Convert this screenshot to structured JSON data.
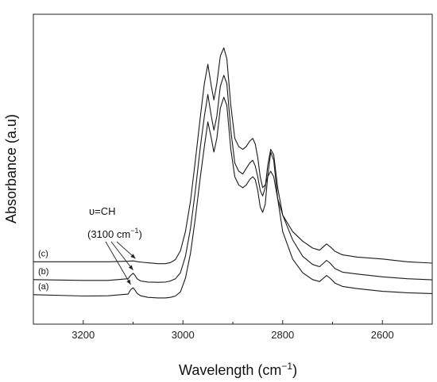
{
  "chart_data": {
    "type": "line",
    "xlabel": "Wavelength (cm",
    "xlabel_sup": "−1",
    "xlabel_close": ")",
    "ylabel": "Absorbance (a.u)",
    "xlim": [
      3300,
      2500
    ],
    "ylim": [
      0,
      1
    ],
    "x_ticks": [
      3200,
      3000,
      2800,
      2600
    ],
    "x_tick_labels": [
      "3200",
      "3000",
      "2800",
      "2600"
    ],
    "grid": false,
    "annotation": {
      "line1": "υ=CH",
      "line2_prefix": "(3100 cm",
      "line2_sup": "−1",
      "line2_suffix": ")",
      "target_x": 3100
    },
    "series": [
      {
        "name": "(a)",
        "x": [
          3300,
          3200,
          3150,
          3110,
          3105,
          3100,
          3096,
          3092,
          3085,
          3070,
          3050,
          3035,
          3025,
          3015,
          3005,
          2995,
          2985,
          2975,
          2965,
          2957,
          2950,
          2943,
          2938,
          2932,
          2925,
          2918,
          2912,
          2904,
          2896,
          2888,
          2880,
          2873,
          2866,
          2860,
          2855,
          2850,
          2845,
          2840,
          2835,
          2830,
          2824,
          2818,
          2810,
          2800,
          2780,
          2760,
          2740,
          2726,
          2718,
          2712,
          2705,
          2695,
          2680,
          2650,
          2600,
          2550,
          2500
        ],
        "y": [
          0.07,
          0.065,
          0.066,
          0.072,
          0.088,
          0.095,
          0.086,
          0.075,
          0.066,
          0.06,
          0.058,
          0.058,
          0.06,
          0.065,
          0.08,
          0.13,
          0.22,
          0.35,
          0.5,
          0.61,
          0.7,
          0.64,
          0.59,
          0.64,
          0.75,
          0.79,
          0.76,
          0.6,
          0.5,
          0.47,
          0.46,
          0.47,
          0.49,
          0.5,
          0.49,
          0.45,
          0.39,
          0.37,
          0.4,
          0.5,
          0.59,
          0.56,
          0.42,
          0.3,
          0.2,
          0.15,
          0.125,
          0.118,
          0.13,
          0.14,
          0.13,
          0.112,
          0.1,
          0.092,
          0.082,
          0.077,
          0.074
        ]
      },
      {
        "name": "(b)",
        "x": [
          3300,
          3200,
          3150,
          3110,
          3105,
          3100,
          3096,
          3092,
          3085,
          3070,
          3050,
          3035,
          3025,
          3015,
          3005,
          2995,
          2985,
          2975,
          2965,
          2957,
          2950,
          2943,
          2938,
          2932,
          2925,
          2918,
          2912,
          2904,
          2896,
          2888,
          2880,
          2873,
          2866,
          2860,
          2855,
          2850,
          2845,
          2840,
          2835,
          2830,
          2824,
          2818,
          2810,
          2800,
          2780,
          2760,
          2740,
          2726,
          2718,
          2712,
          2705,
          2695,
          2680,
          2650,
          2600,
          2550,
          2500
        ],
        "y": [
          0.125,
          0.122,
          0.122,
          0.128,
          0.14,
          0.148,
          0.14,
          0.128,
          0.12,
          0.116,
          0.115,
          0.116,
          0.12,
          0.128,
          0.15,
          0.21,
          0.31,
          0.45,
          0.61,
          0.72,
          0.8,
          0.72,
          0.67,
          0.72,
          0.83,
          0.87,
          0.84,
          0.67,
          0.55,
          0.52,
          0.51,
          0.53,
          0.55,
          0.56,
          0.54,
          0.5,
          0.45,
          0.43,
          0.46,
          0.54,
          0.6,
          0.58,
          0.46,
          0.36,
          0.27,
          0.21,
          0.18,
          0.172,
          0.185,
          0.195,
          0.185,
          0.165,
          0.152,
          0.145,
          0.135,
          0.128,
          0.124
        ]
      },
      {
        "name": "(c)",
        "x": [
          3300,
          3200,
          3150,
          3110,
          3100,
          3090,
          3080,
          3070,
          3050,
          3035,
          3025,
          3015,
          3005,
          2995,
          2985,
          2975,
          2965,
          2957,
          2950,
          2943,
          2938,
          2932,
          2925,
          2918,
          2912,
          2904,
          2896,
          2888,
          2880,
          2873,
          2866,
          2860,
          2855,
          2850,
          2845,
          2840,
          2835,
          2830,
          2824,
          2818,
          2810,
          2800,
          2780,
          2760,
          2740,
          2726,
          2718,
          2712,
          2705,
          2695,
          2680,
          2650,
          2600,
          2550,
          2500
        ],
        "y": [
          0.19,
          0.19,
          0.19,
          0.192,
          0.193,
          0.19,
          0.188,
          0.186,
          0.183,
          0.183,
          0.187,
          0.198,
          0.23,
          0.3,
          0.41,
          0.56,
          0.72,
          0.84,
          0.91,
          0.83,
          0.78,
          0.84,
          0.94,
          0.97,
          0.93,
          0.76,
          0.64,
          0.61,
          0.6,
          0.61,
          0.63,
          0.64,
          0.62,
          0.57,
          0.5,
          0.46,
          0.47,
          0.5,
          0.52,
          0.5,
          0.42,
          0.36,
          0.3,
          0.265,
          0.24,
          0.232,
          0.245,
          0.255,
          0.245,
          0.228,
          0.215,
          0.207,
          0.2,
          0.19,
          0.185
        ]
      }
    ]
  }
}
